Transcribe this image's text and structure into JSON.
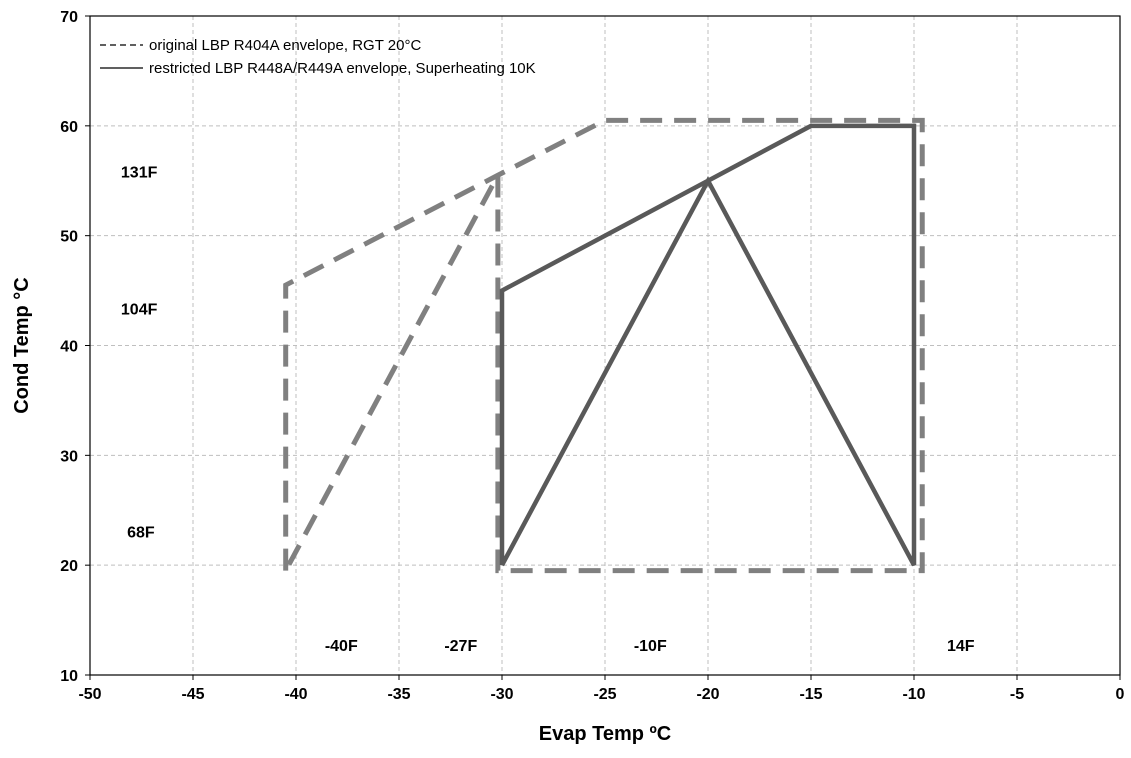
{
  "chart_data": {
    "type": "line",
    "xlabel": "Evap Temp ºC",
    "ylabel": "Cond Temp °C",
    "xlim": [
      -50,
      0
    ],
    "ylim": [
      10,
      70
    ],
    "x_ticks": [
      -50,
      -45,
      -40,
      -35,
      -30,
      -25,
      -20,
      -15,
      -10,
      -5,
      0
    ],
    "y_ticks": [
      10,
      20,
      30,
      40,
      50,
      60,
      70
    ],
    "grid": true,
    "legend_position": "top-left",
    "series": [
      {
        "name": "original LBP R404A envelope, RGT 20°C",
        "style": "dashed",
        "color": "#808080",
        "x": [
          -40.5,
          -40.5,
          -30.2,
          -25,
          -9.6,
          -9.6,
          -30.2,
          -30.2,
          -40.5
        ],
        "y": [
          19.5,
          45.5,
          55.5,
          60.5,
          60.5,
          19.5,
          19.5,
          55.5,
          19.5
        ]
      },
      {
        "name": "restricted LBP R448A/R449A envelope, Superheating 10K",
        "style": "solid",
        "color": "#595959",
        "x": [
          -30,
          -30,
          -15,
          -10,
          -10,
          -20,
          -30
        ],
        "y": [
          20,
          45,
          60,
          60,
          20,
          55,
          20
        ]
      }
    ],
    "annotations": [
      {
        "text": "131F",
        "x": -48.5,
        "y": 55.3
      },
      {
        "text": "104F",
        "x": -48.5,
        "y": 42.8
      },
      {
        "text": "68F",
        "x": -48.2,
        "y": 22.5
      },
      {
        "text": "-40F",
        "x": -38.6,
        "y": 12.2
      },
      {
        "text": "-27F",
        "x": -32.8,
        "y": 12.2
      },
      {
        "text": "-10F",
        "x": -23.6,
        "y": 12.2
      },
      {
        "text": "14F",
        "x": -8.4,
        "y": 12.2
      }
    ]
  }
}
